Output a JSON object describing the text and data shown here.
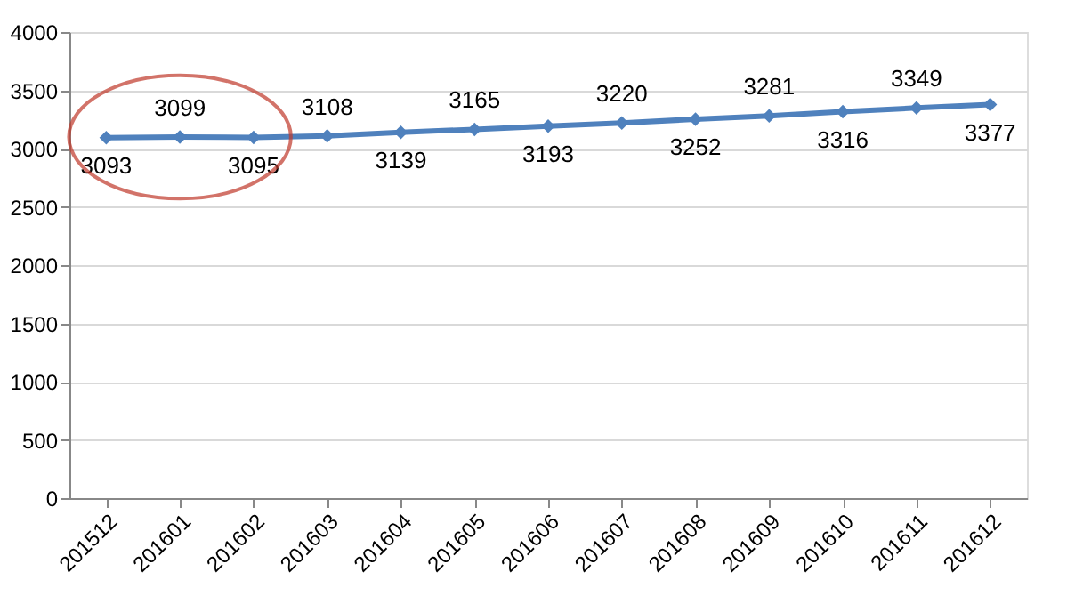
{
  "chart_data": {
    "type": "line",
    "categories": [
      "201512",
      "201601",
      "201602",
      "201603",
      "201604",
      "201605",
      "201606",
      "201607",
      "201608",
      "201609",
      "201610",
      "201611",
      "201612"
    ],
    "series": [
      {
        "color": "#4f81bd",
        "values": [
          3093,
          3099,
          3095,
          3108,
          3139,
          3165,
          3193,
          3220,
          3252,
          3281,
          3316,
          3349,
          3377
        ]
      }
    ],
    "ylim": [
      0,
      4000
    ],
    "yticks": [
      0,
      500,
      1000,
      1500,
      2000,
      2500,
      3000,
      3500,
      4000
    ],
    "grid": "y",
    "marker": "diamond",
    "line_style": "solid",
    "data_labels": true,
    "legend": false
  }
}
